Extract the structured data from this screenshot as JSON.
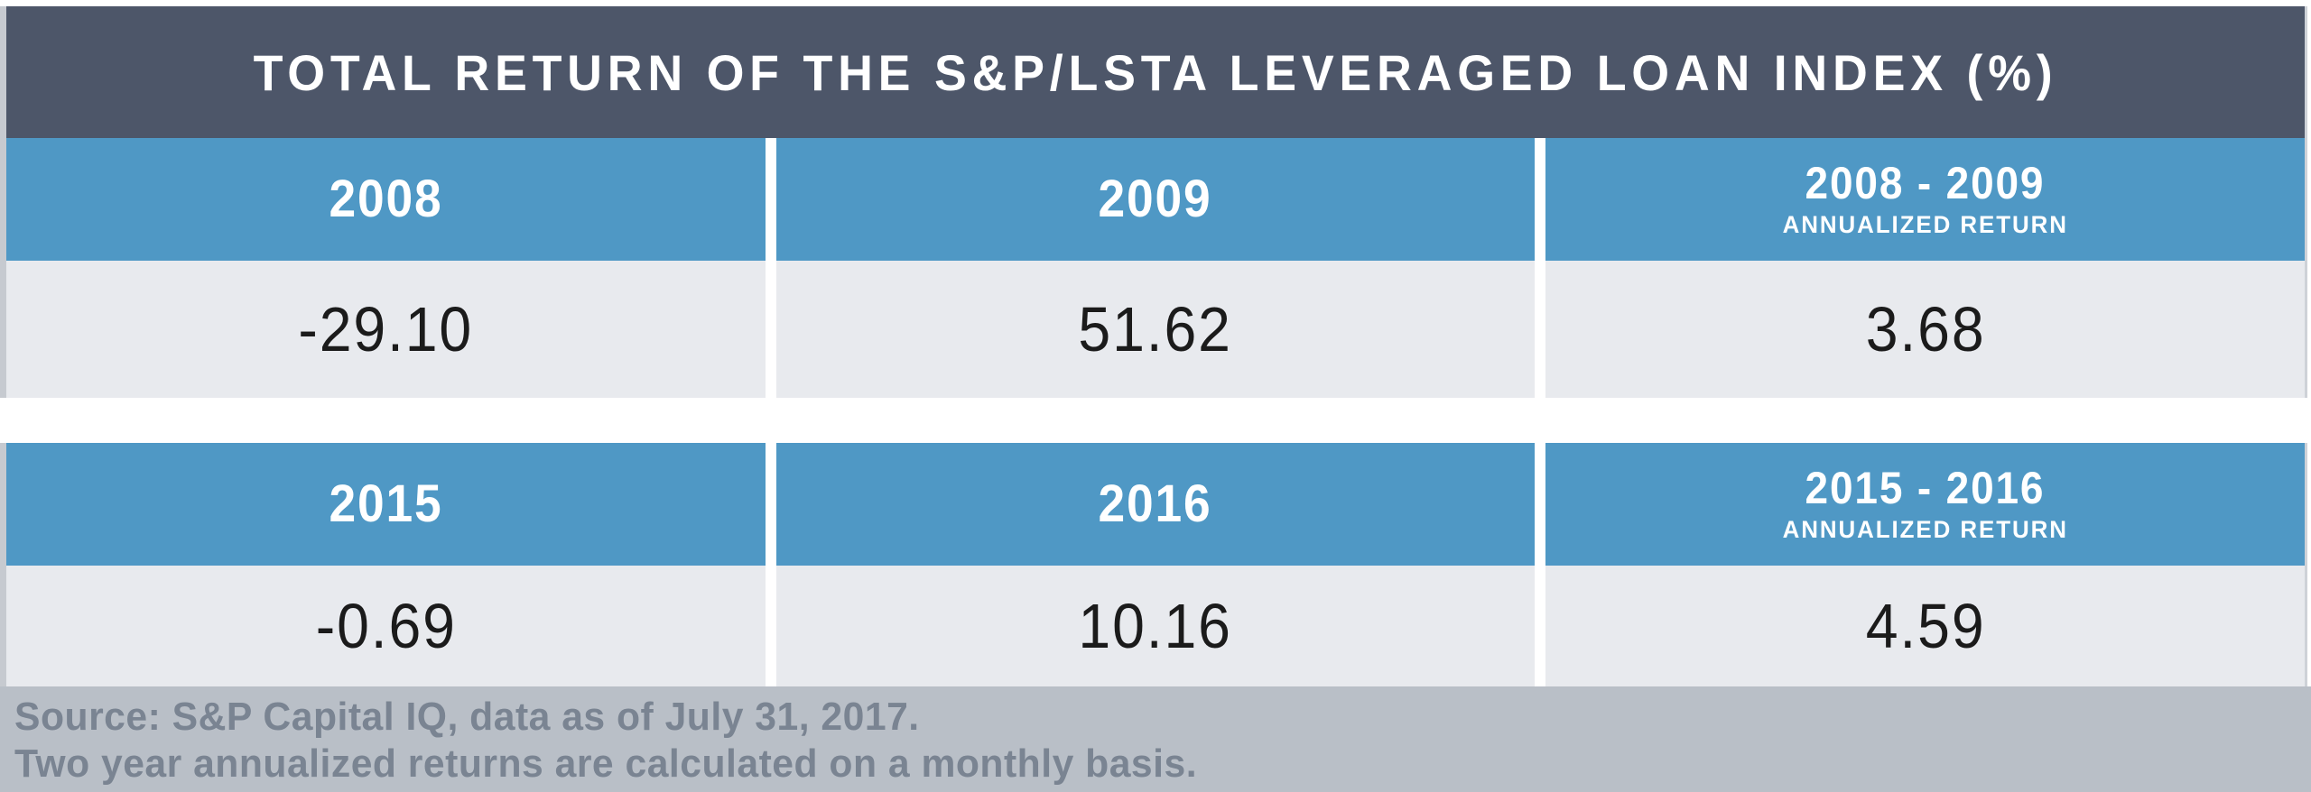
{
  "title": "TOTAL RETURN OF THE S&P/LSTA LEVERAGED LOAN INDEX (%)",
  "tables": [
    {
      "columns": [
        {
          "label": "2008"
        },
        {
          "label": "2009"
        },
        {
          "label": "2008 - 2009",
          "sublabel": "ANNUALIZED RETURN"
        }
      ],
      "values": [
        "-29.10",
        "51.62",
        "3.68"
      ]
    },
    {
      "columns": [
        {
          "label": "2015"
        },
        {
          "label": "2016"
        },
        {
          "label": "2015 - 2016",
          "sublabel": "ANNUALIZED RETURN"
        }
      ],
      "values": [
        "-0.69",
        "10.16",
        "4.59"
      ]
    }
  ],
  "footer": {
    "line1": "Source: S&P Capital IQ, data as of July 31, 2017.",
    "line2": "Two year annualized returns are calculated on a monthly basis."
  },
  "colors": {
    "title_bar": "#4d5669",
    "header_blue": "#4f98c5",
    "row_gray": "#e8eaee",
    "footer_bg": "#b9bfc7",
    "footer_text": "#7a8492",
    "value_text": "#1b1b1b",
    "header_text": "#ffffff"
  },
  "chart_data": {
    "type": "table",
    "title": "TOTAL RETURN OF THE S&P/LSTA LEVERAGED LOAN INDEX (%)",
    "tables": [
      {
        "columns": [
          "2008",
          "2009",
          "2008 - 2009 ANNUALIZED RETURN"
        ],
        "values": [
          -29.1,
          51.62,
          3.68
        ]
      },
      {
        "columns": [
          "2015",
          "2016",
          "2015 - 2016 ANNUALIZED RETURN"
        ],
        "values": [
          -0.69,
          10.16,
          4.59
        ]
      }
    ],
    "notes": [
      "Source: S&P Capital IQ, data as of July 31, 2017.",
      "Two year annualized returns are calculated on a monthly basis."
    ],
    "legend_position": "none",
    "grid": false
  }
}
